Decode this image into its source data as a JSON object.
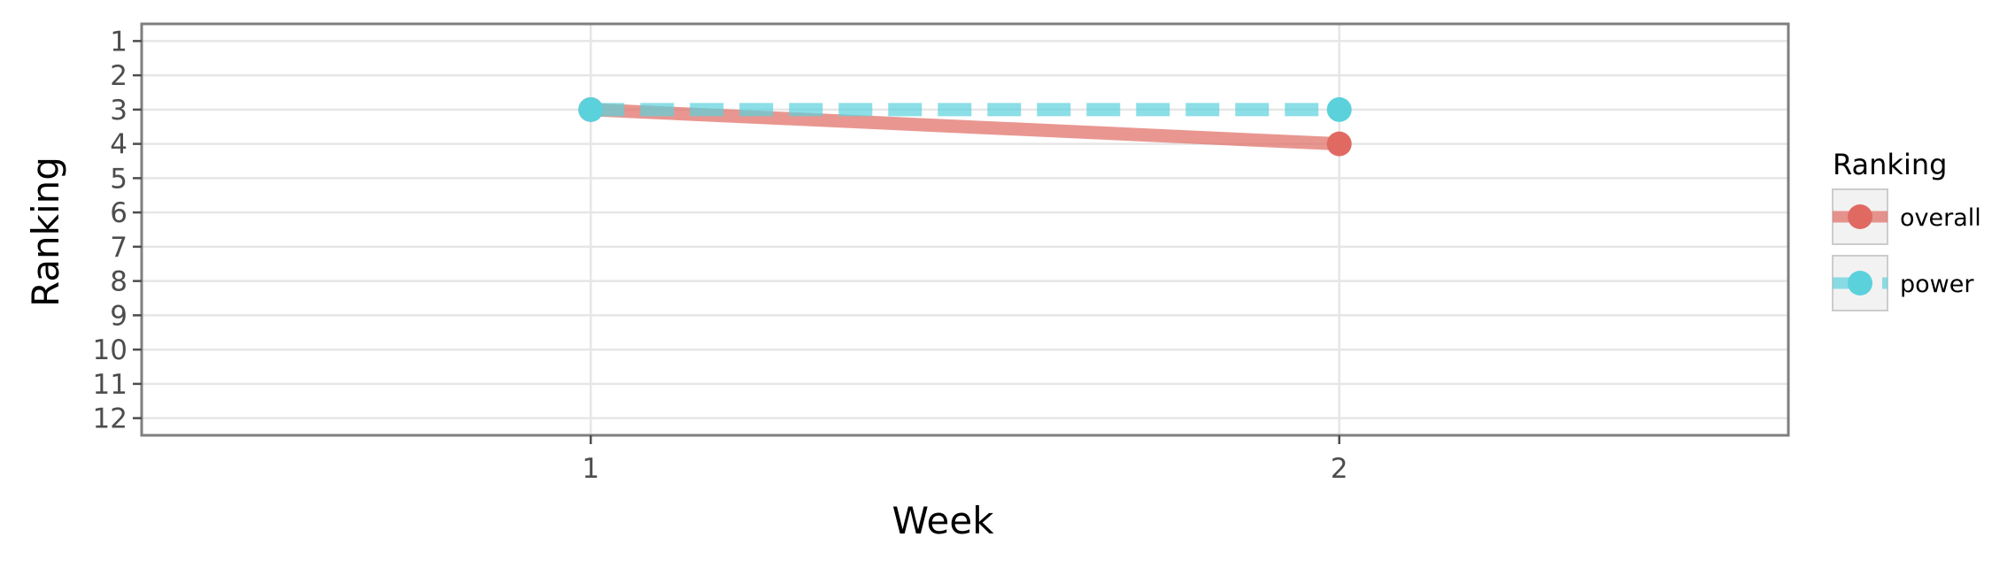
{
  "chart_data": {
    "type": "line",
    "title": "",
    "xlabel": "Week",
    "ylabel": "Ranking",
    "x": [
      1,
      2
    ],
    "xticks": [
      "1",
      "2"
    ],
    "xlim": [
      0.4,
      2.6
    ],
    "yticks": [
      "1",
      "2",
      "3",
      "4",
      "5",
      "6",
      "7",
      "8",
      "9",
      "10",
      "11",
      "12"
    ],
    "ylim": [
      12.5,
      0.5
    ],
    "y_reversed": true,
    "grid": true,
    "legend": {
      "title": "Ranking",
      "placement": "right"
    },
    "series": [
      {
        "name": "overall",
        "values": [
          3,
          4
        ],
        "color": "#e06a62",
        "linestyle": "solid"
      },
      {
        "name": "power",
        "values": [
          3,
          3
        ],
        "color": "#5bd1dc",
        "linestyle": "dashed"
      }
    ]
  }
}
